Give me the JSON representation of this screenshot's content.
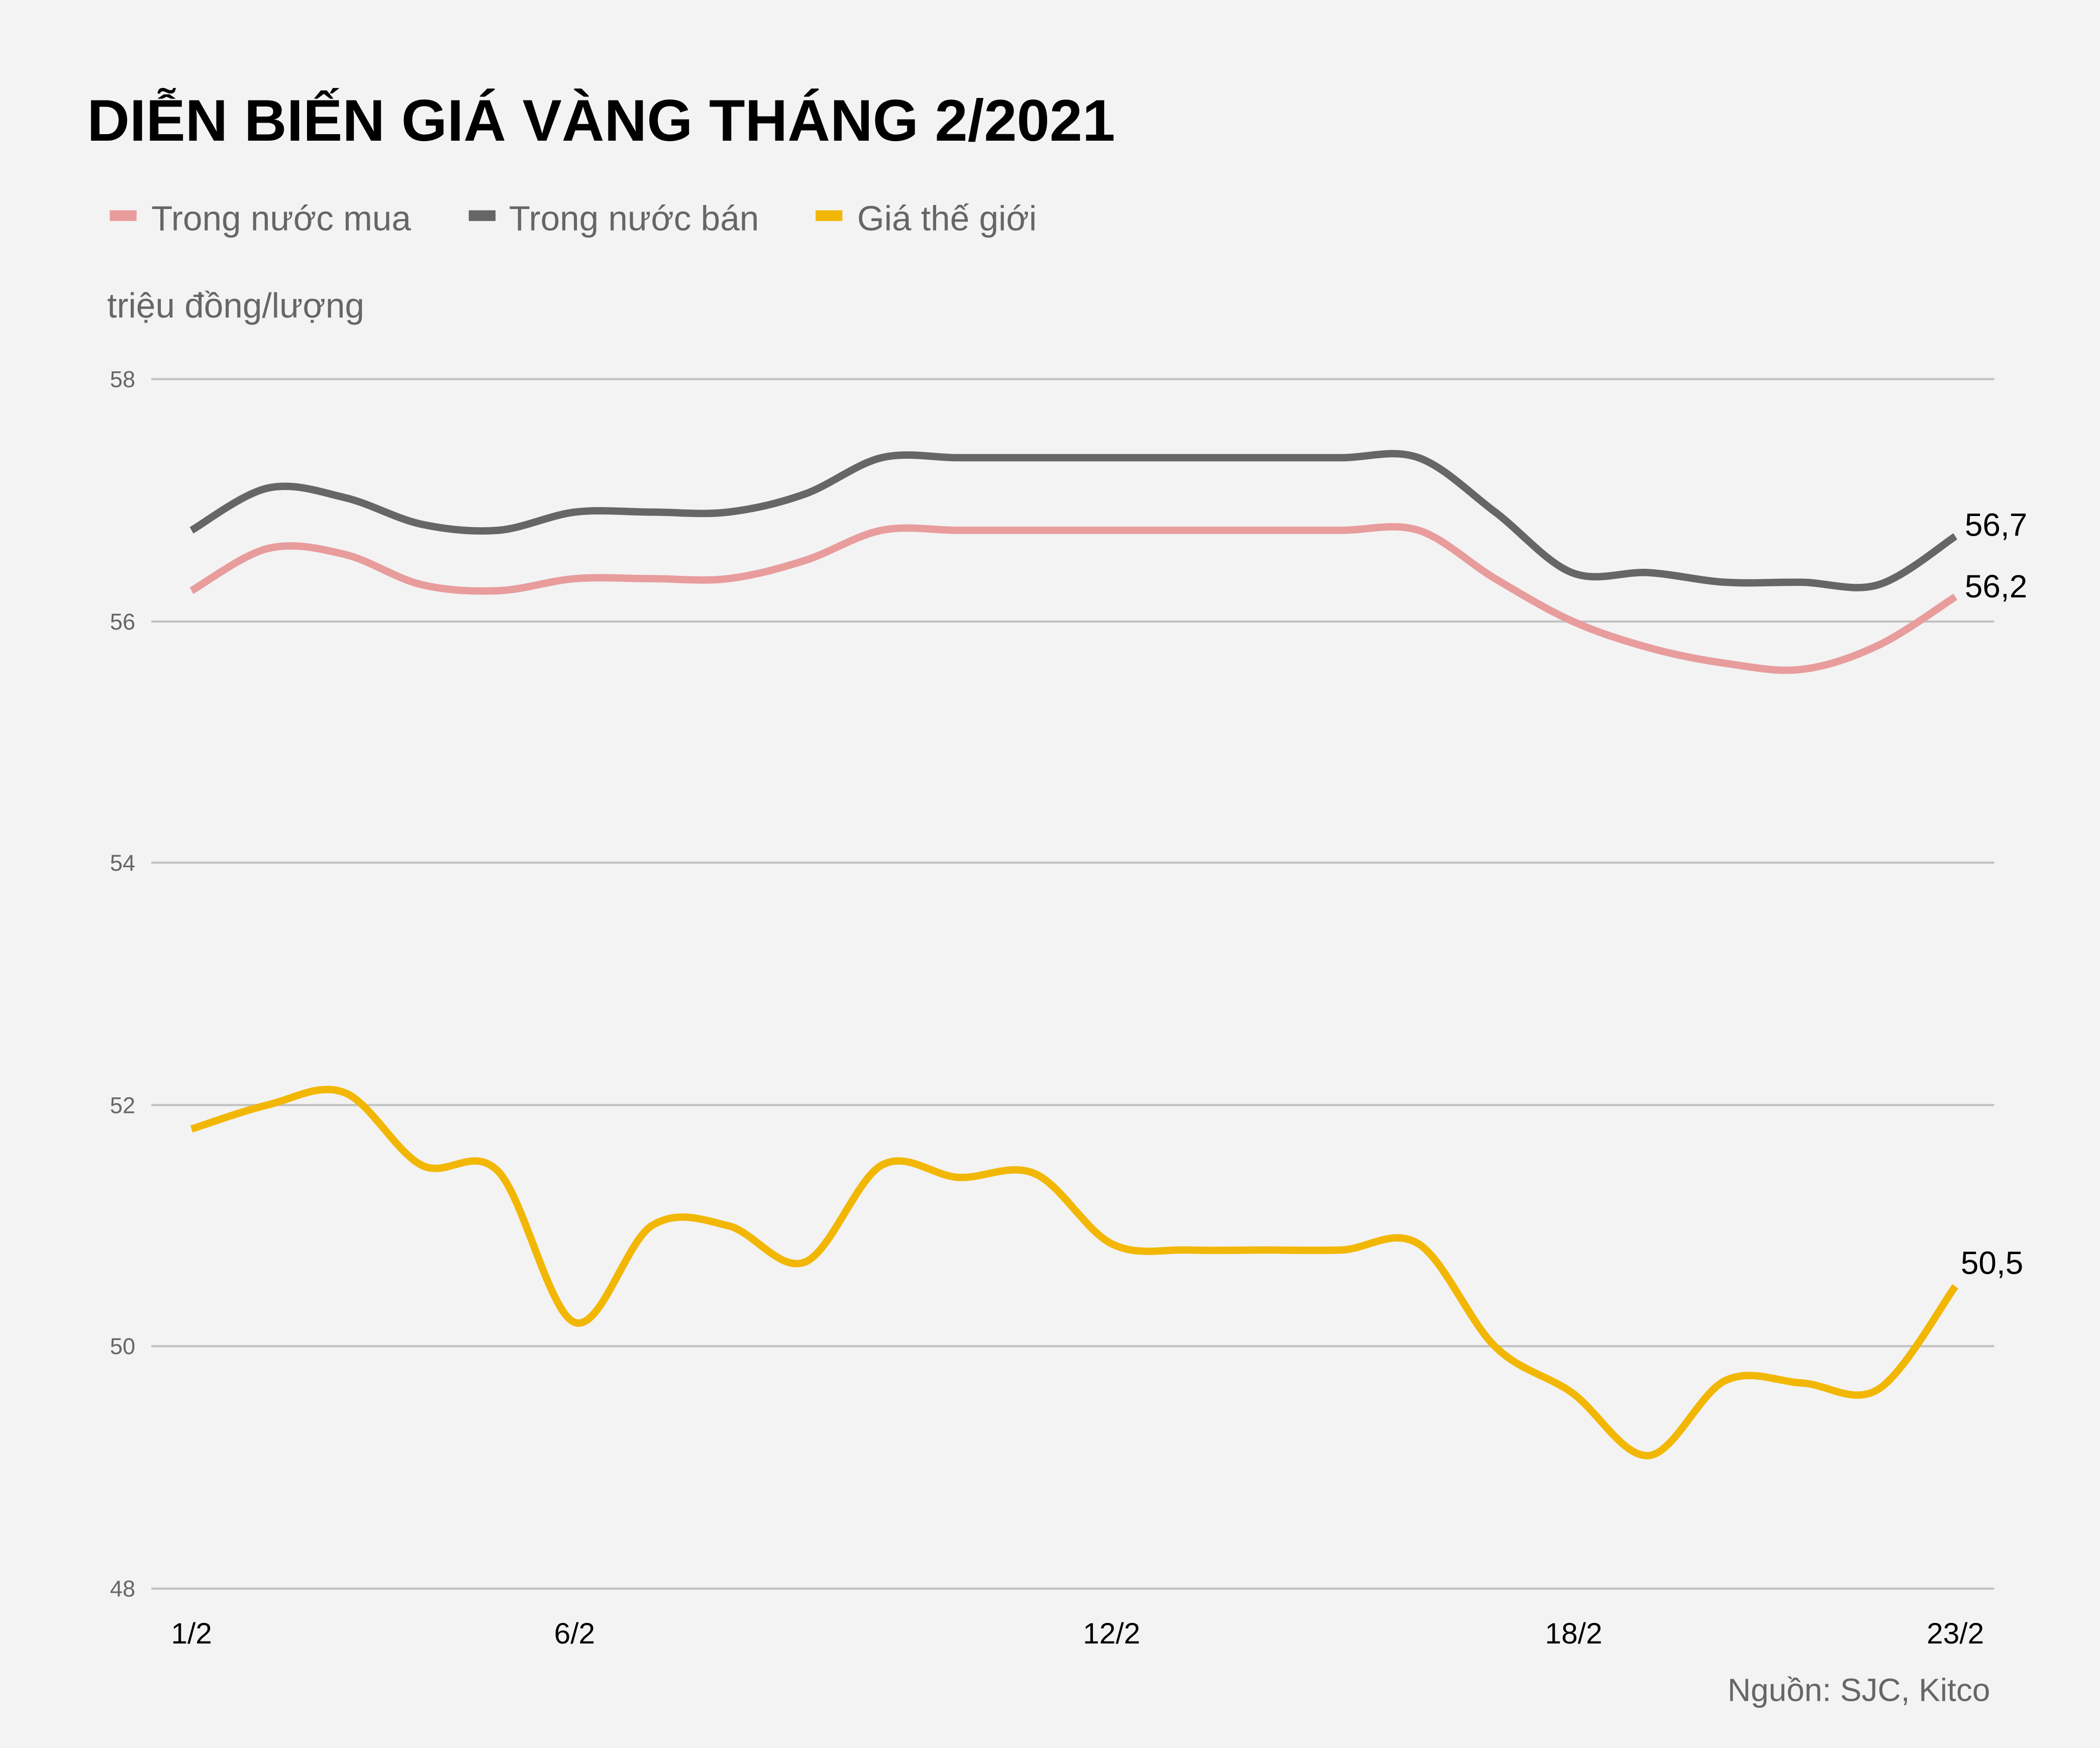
{
  "header": {
    "title": "DIỄN BIẾN GIÁ VÀNG THÁNG 2/2021"
  },
  "legend": {
    "items": [
      {
        "label": "Trong nước mua",
        "color": "#e89c9c"
      },
      {
        "label": "Trong nước bán",
        "color": "#666666"
      },
      {
        "label": "Giá thế giới",
        "color": "#f2b705"
      }
    ]
  },
  "axis": {
    "unit_label": "triệu đồng/lượng",
    "y_ticks": [
      "58",
      "56",
      "54",
      "52",
      "50",
      "48"
    ],
    "x_ticks": [
      {
        "label": "1/2",
        "index": 0
      },
      {
        "label": "6/2",
        "index": 5
      },
      {
        "label": "12/2",
        "index": 12
      },
      {
        "label": "18/2",
        "index": 18
      },
      {
        "label": "23/2",
        "index": 23
      }
    ]
  },
  "end_labels": {
    "mua": "56,2",
    "ban": "56,7",
    "the_gioi": "50,5"
  },
  "footer": {
    "source": "Nguồn: SJC, Kitco"
  },
  "colors": {
    "background": "#f3f3f3",
    "grid": "#c2c2c2",
    "mua": "#e89c9c",
    "ban": "#666666",
    "the_gioi": "#f2b705"
  },
  "chart_data": {
    "type": "line",
    "title": "DIỄN BIẾN GIÁ VÀNG THÁNG 2/2021",
    "xlabel": "",
    "ylabel": "triệu đồng/lượng",
    "ylim": [
      48,
      58
    ],
    "y_ticks": [
      48,
      50,
      52,
      54,
      56,
      58
    ],
    "grid": true,
    "legend_position": "top-left",
    "x_tick_labels": [
      "1/2",
      "6/2",
      "12/2",
      "18/2",
      "23/2"
    ],
    "x_tick_indices": [
      0,
      5,
      12,
      18,
      23
    ],
    "x": [
      0,
      1,
      2,
      3,
      4,
      5,
      6,
      7,
      8,
      9,
      10,
      11,
      12,
      13,
      14,
      15,
      16,
      17,
      18,
      19,
      20,
      21,
      22,
      23
    ],
    "series": [
      {
        "name": "Trong nước mua",
        "color": "#e89c9c",
        "values": [
          56.25,
          56.6,
          56.55,
          56.3,
          56.25,
          56.35,
          56.35,
          56.35,
          56.5,
          56.75,
          56.75,
          56.75,
          56.75,
          56.75,
          56.75,
          56.75,
          56.75,
          56.35,
          56.0,
          55.78,
          55.65,
          55.6,
          55.8,
          56.2
        ]
      },
      {
        "name": "Trong nước bán",
        "color": "#666666",
        "values": [
          56.75,
          57.1,
          57.02,
          56.8,
          56.75,
          56.9,
          56.9,
          56.9,
          57.05,
          57.35,
          57.35,
          57.35,
          57.35,
          57.35,
          57.35,
          57.35,
          57.35,
          56.9,
          56.4,
          56.4,
          56.32,
          56.32,
          56.3,
          56.7
        ]
      },
      {
        "name": "Giá thế giới",
        "color": "#f2b705",
        "values": [
          51.8,
          52.0,
          52.1,
          51.5,
          51.45,
          50.2,
          51.0,
          51.0,
          50.7,
          51.5,
          51.4,
          51.43,
          50.85,
          50.8,
          50.8,
          50.8,
          50.85,
          50.0,
          49.62,
          49.1,
          49.72,
          49.7,
          49.65,
          50.5
        ]
      }
    ],
    "annotations": [
      {
        "series": "Trong nước bán",
        "text": "56,7"
      },
      {
        "series": "Trong nước mua",
        "text": "56,2"
      },
      {
        "series": "Giá thế giới",
        "text": "50,5"
      }
    ],
    "source": "Nguồn: SJC, Kitco"
  }
}
